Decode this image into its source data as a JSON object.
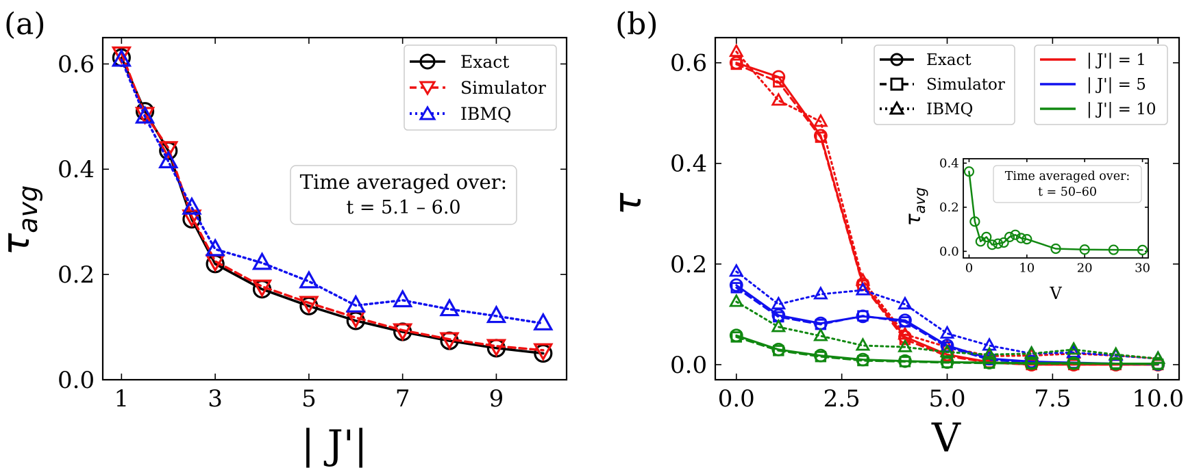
{
  "panels": {
    "a": {
      "label": "(a)",
      "ylabel_main": "τ",
      "ylabel_sub": "avg",
      "xlabel": "| J'|",
      "xticks": [
        1,
        3,
        5,
        7,
        9
      ],
      "yticks": [
        0.0,
        0.2,
        0.4,
        0.6
      ],
      "ytick_labels": [
        "0.0",
        "0.2",
        "0.4",
        "0.6"
      ],
      "annotation_line1": "Time averaged over:",
      "annotation_line2": "t = 5.1 – 6.0"
    },
    "b": {
      "label": "(b)",
      "ylabel": "τ",
      "xlabel": "V",
      "xticks": [
        0.0,
        2.5,
        5.0,
        7.5,
        10.0
      ],
      "xtick_labels": [
        "0.0",
        "2.5",
        "5.0",
        "7.5",
        "10.0"
      ],
      "yticks": [
        0.0,
        0.2,
        0.4,
        0.6
      ],
      "ytick_labels": [
        "0.0",
        "0.2",
        "0.4",
        "0.6"
      ]
    },
    "inset": {
      "ylabel_main": "τ",
      "ylabel_sub": "avg",
      "xlabel": "V",
      "xticks": [
        0,
        10,
        20,
        30
      ],
      "yticks": [
        0.0,
        0.2,
        0.4
      ],
      "ytick_labels": [
        "0.0",
        "0.2",
        "0.4"
      ],
      "annotation_line1": "Time averaged over:",
      "annotation_line2": "t = 50–60"
    }
  },
  "legends": {
    "a": [
      "Exact",
      "Simulator",
      "IBMQ"
    ],
    "b_methods": [
      "Exact",
      "Simulator",
      "IBMQ"
    ],
    "b_couplings": [
      "| J'| = 1",
      "| J'| = 5",
      "| J'| = 10"
    ]
  },
  "colors": {
    "black": "#000000",
    "red": "#ee1111",
    "blue": "#1111ee",
    "green": "#118811"
  },
  "chart_data": [
    {
      "id": "a",
      "type": "line",
      "xlabel": "| J'|",
      "ylabel": "τ_avg",
      "xlim": [
        0.6,
        10.5
      ],
      "ylim": [
        0.0,
        0.65
      ],
      "x": [
        1,
        1.5,
        2,
        2.5,
        3,
        4,
        5,
        6,
        7,
        8,
        9,
        10
      ],
      "series": [
        {
          "name": "Exact",
          "color": "#000000",
          "marker": "circle",
          "line": "solid",
          "values": [
            0.612,
            0.51,
            0.435,
            0.305,
            0.22,
            0.172,
            0.14,
            0.112,
            0.091,
            0.074,
            0.06,
            0.05
          ]
        },
        {
          "name": "Simulator",
          "color": "#ee1111",
          "marker": "triangle-down",
          "line": "dashed",
          "values": [
            0.62,
            0.505,
            0.44,
            0.31,
            0.225,
            0.177,
            0.146,
            0.118,
            0.094,
            0.077,
            0.064,
            0.056
          ]
        },
        {
          "name": "IBMQ",
          "color": "#1111ee",
          "marker": "triangle-up",
          "line": "dotted",
          "values": [
            0.608,
            0.5,
            0.415,
            0.327,
            0.248,
            0.222,
            0.187,
            0.141,
            0.151,
            0.134,
            0.121,
            0.107
          ]
        }
      ],
      "annotation": "Time averaged over: t = 5.1 – 6.0"
    },
    {
      "id": "b",
      "type": "line",
      "xlabel": "V",
      "ylabel": "τ",
      "xlim": [
        -0.5,
        10.5
      ],
      "ylim": [
        -0.03,
        0.65
      ],
      "x": [
        0,
        1,
        2,
        3,
        4,
        5,
        6,
        7,
        8,
        9,
        10
      ],
      "series": [
        {
          "name": "Exact |J'|=1",
          "color": "#ee1111",
          "marker": "circle",
          "line": "solid",
          "values": [
            0.6,
            0.572,
            0.455,
            0.16,
            0.055,
            0.02,
            0.005,
            0.0,
            0.0,
            0.0,
            0.0
          ]
        },
        {
          "name": "Simulator |J'|=1",
          "color": "#ee1111",
          "marker": "square",
          "line": "dashed",
          "values": [
            0.597,
            0.562,
            0.452,
            0.158,
            0.05,
            0.017,
            0.004,
            0.0,
            0.0,
            0.0,
            0.0
          ]
        },
        {
          "name": "IBMQ |J'|=1",
          "color": "#ee1111",
          "marker": "triangle-up",
          "line": "dotted",
          "values": [
            0.622,
            0.525,
            0.483,
            0.167,
            0.06,
            0.035,
            0.017,
            0.018,
            0.022,
            0.018,
            0.012
          ]
        },
        {
          "name": "Exact |J'|=5",
          "color": "#1111ee",
          "marker": "circle",
          "line": "solid",
          "values": [
            0.158,
            0.098,
            0.082,
            0.096,
            0.088,
            0.038,
            0.012,
            0.006,
            0.004,
            0.002,
            0.001
          ]
        },
        {
          "name": "Simulator |J'|=5",
          "color": "#1111ee",
          "marker": "square",
          "line": "dashed",
          "values": [
            0.153,
            0.095,
            0.08,
            0.097,
            0.085,
            0.035,
            0.01,
            0.004,
            0.003,
            0.002,
            0.001
          ]
        },
        {
          "name": "IBMQ |J'|=5",
          "color": "#1111ee",
          "marker": "triangle-up",
          "line": "dotted",
          "values": [
            0.185,
            0.12,
            0.14,
            0.148,
            0.12,
            0.062,
            0.038,
            0.022,
            0.024,
            0.018,
            0.012
          ]
        },
        {
          "name": "Exact |J'|=10",
          "color": "#118811",
          "marker": "circle",
          "line": "solid",
          "values": [
            0.058,
            0.03,
            0.018,
            0.01,
            0.007,
            0.005,
            0.004,
            0.003,
            0.003,
            0.002,
            0.002
          ]
        },
        {
          "name": "Simulator |J'|=10",
          "color": "#118811",
          "marker": "square",
          "line": "dashed",
          "values": [
            0.055,
            0.028,
            0.016,
            0.008,
            0.006,
            0.004,
            0.003,
            0.002,
            0.002,
            0.002,
            0.001
          ]
        },
        {
          "name": "IBMQ |J'|=10",
          "color": "#118811",
          "marker": "triangle-up",
          "line": "dotted",
          "values": [
            0.125,
            0.075,
            0.057,
            0.038,
            0.035,
            0.025,
            0.02,
            0.022,
            0.03,
            0.02,
            0.012
          ]
        }
      ]
    },
    {
      "id": "inset",
      "type": "line",
      "xlabel": "V",
      "ylabel": "τ_avg",
      "xlim": [
        -1,
        31
      ],
      "ylim": [
        -0.03,
        0.42
      ],
      "series": [
        {
          "name": "|J'|=10",
          "color": "#118811",
          "marker": "circle",
          "line": "solid",
          "x": [
            0,
            1,
            2,
            3,
            4,
            5,
            6,
            7,
            8,
            9,
            10,
            15,
            20,
            25,
            30
          ],
          "values": [
            0.362,
            0.135,
            0.045,
            0.065,
            0.03,
            0.035,
            0.04,
            0.065,
            0.075,
            0.06,
            0.055,
            0.012,
            0.008,
            0.007,
            0.006
          ]
        }
      ],
      "annotation": "Time averaged over: t = 50–60"
    }
  ]
}
